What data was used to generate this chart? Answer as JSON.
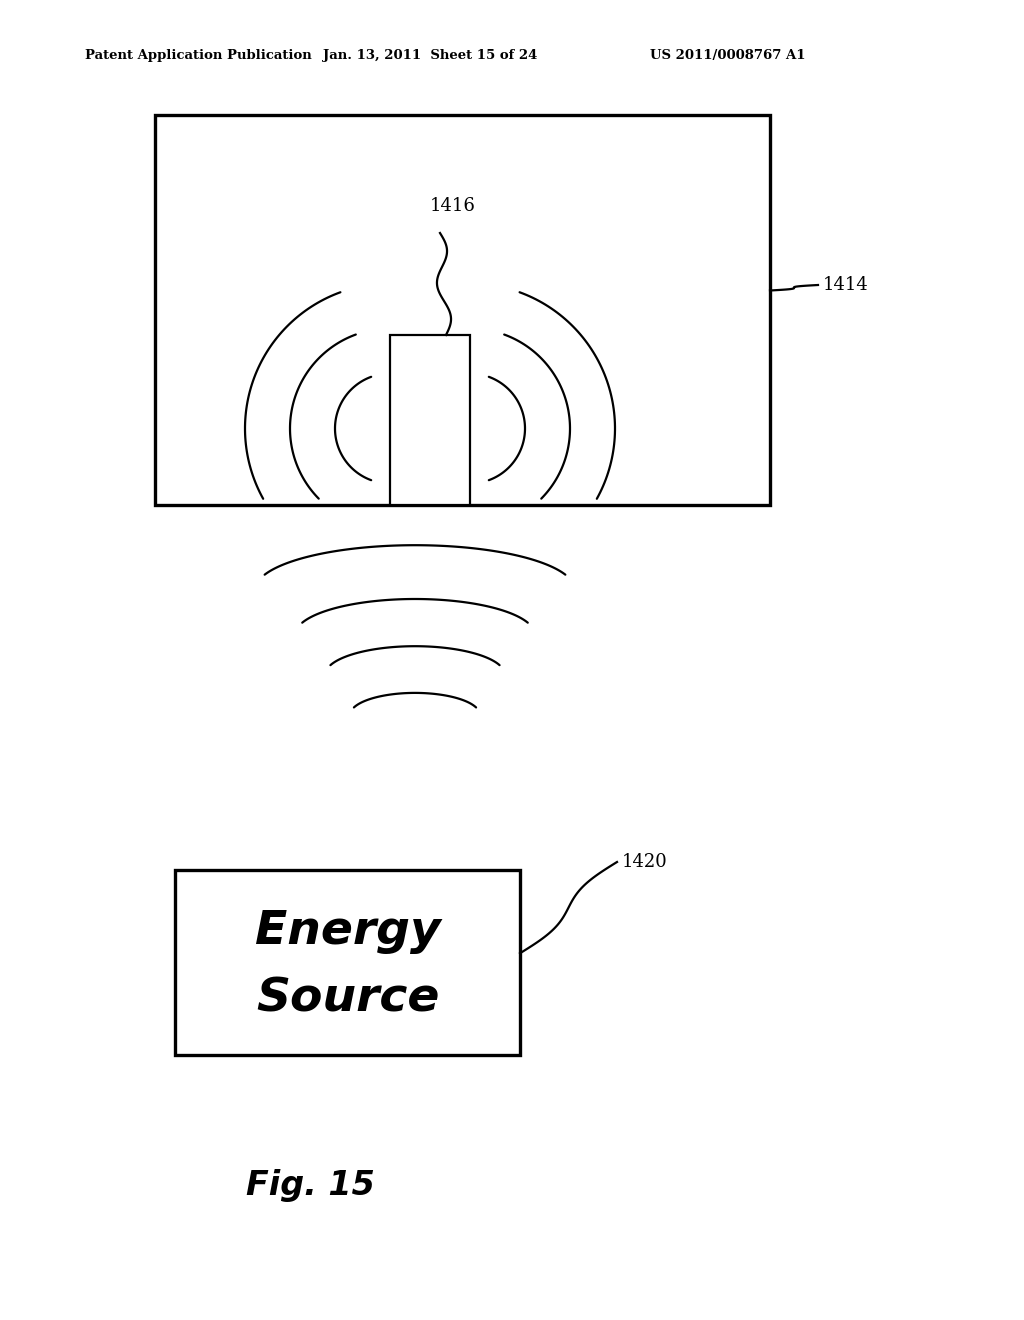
{
  "bg_color": "#ffffff",
  "header_left": "Patent Application Publication",
  "header_mid": "Jan. 13, 2011  Sheet 15 of 24",
  "header_right": "US 2011/0008767 A1",
  "fig_label": "Fig. 15",
  "label_1414": "1414",
  "label_1416": "1416",
  "label_1420": "1420",
  "energy_source_line1": "Energy",
  "energy_source_line2": "Source",
  "line_color": "#000000",
  "line_width": 1.6
}
